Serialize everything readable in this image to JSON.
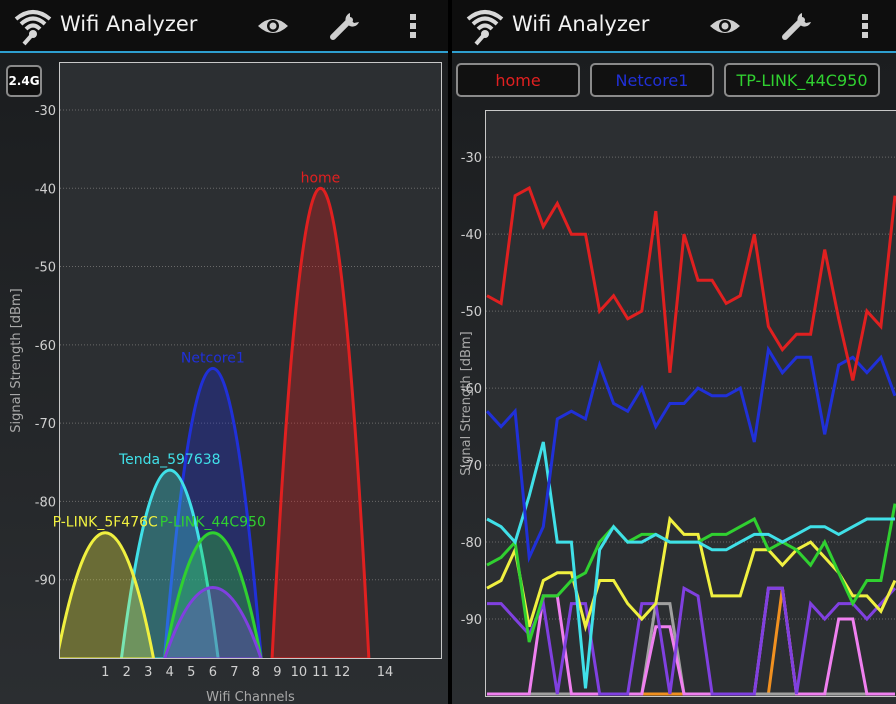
{
  "left": {
    "title": "Wifi Analyzer",
    "band_button": "2.4G",
    "y_axis_label": "Signal Strength [dBm]",
    "x_axis_label": "Wifi Channels",
    "y_ticks": [
      -30,
      -40,
      -50,
      -60,
      -70,
      -80,
      -90
    ],
    "x_ticks": [
      1,
      2,
      3,
      4,
      5,
      6,
      7,
      8,
      9,
      10,
      11,
      12,
      14
    ],
    "icons": [
      "wifi-logo-icon",
      "eye-icon",
      "wrench-icon",
      "overflow-menu-icon"
    ]
  },
  "right": {
    "title": "Wifi Analyzer",
    "y_axis_label": "Signal Strength [dBm]",
    "y_ticks": [
      -30,
      -40,
      -50,
      -60,
      -70,
      -80,
      -90
    ],
    "ap_buttons": [
      {
        "label": "home",
        "color": "#e02020"
      },
      {
        "label": "Netcore1",
        "color": "#2030d8"
      },
      {
        "label": "TP-LINK_44C950",
        "color": "#30d030"
      }
    ],
    "icons": [
      "wifi-logo-icon",
      "eye-icon",
      "wrench-icon",
      "overflow-menu-icon"
    ]
  },
  "chart_data": [
    {
      "type": "area",
      "x_axis": {
        "label": "Wifi Channels",
        "min": -1.1,
        "max": 16.6
      },
      "y_axis": {
        "label": "Signal Strength [dBm]",
        "min": -100,
        "max": -24
      },
      "grid": true,
      "series": [
        {
          "name": "home",
          "color": "#e02020",
          "center_channel": 11,
          "peak_dbm": -40,
          "label": "home"
        },
        {
          "name": "Netcore1",
          "color": "#2030d8",
          "center_channel": 6,
          "peak_dbm": -63,
          "label": "Netcore1"
        },
        {
          "name": "Tenda_597638",
          "color": "#40e0e8",
          "center_channel": 4,
          "peak_dbm": -76,
          "label": "Tenda_597638"
        },
        {
          "name": "TP-LINK_5F476C",
          "color": "#f0f040",
          "center_channel": 1,
          "peak_dbm": -84,
          "label": "P-LINK_5F476C"
        },
        {
          "name": "TP-LINK_44C950",
          "color": "#30d030",
          "center_channel": 6,
          "peak_dbm": -84,
          "label": "P-LINK_44C950"
        },
        {
          "name": "purple",
          "color": "#8040e0",
          "center_channel": 6,
          "peak_dbm": -91,
          "label": ""
        }
      ]
    },
    {
      "type": "line",
      "y_axis": {
        "label": "Signal Strength [dBm]",
        "min": -100,
        "max": -24
      },
      "grid": true,
      "series": [
        {
          "name": "home",
          "color": "#e02020",
          "values": [
            -48,
            -49,
            -35,
            -34,
            -39,
            -36,
            -40,
            -40,
            -50,
            -48,
            -51,
            -50,
            -37,
            -58,
            -40,
            -46,
            -46,
            -49,
            -48,
            -40,
            -52,
            -55,
            -53,
            -53,
            -42,
            -51,
            -59,
            -50,
            -52,
            -35
          ]
        },
        {
          "name": "Netcore1",
          "color": "#2030d8",
          "values": [
            -63,
            -65,
            -63,
            -82,
            -78,
            -64,
            -63,
            -64,
            -57,
            -62,
            -63,
            -60,
            -65,
            -62,
            -62,
            -60,
            -61,
            -61,
            -60,
            -67,
            -55,
            -58,
            -56,
            -56,
            -66,
            -57,
            -56,
            -58,
            -56,
            -61
          ]
        },
        {
          "name": "Tenda_597638",
          "color": "#40e0e8",
          "values": [
            -77,
            -78,
            -80,
            -74,
            -67,
            -80,
            -80,
            -99,
            -81,
            -78,
            -80,
            -80,
            -79,
            -80,
            -80,
            -80,
            -81,
            -81,
            -80,
            -79,
            -79,
            -80,
            -79,
            -78,
            -78,
            -79,
            -78,
            -77,
            -77,
            -77
          ]
        },
        {
          "name": "TP-LINK_44C950",
          "color": "#30d030",
          "values": [
            -83,
            -82,
            -80,
            -93,
            -87,
            -87,
            -85,
            -84,
            -80,
            -78,
            -80,
            -79,
            -79,
            -80,
            -80,
            -80,
            -79,
            -79,
            -78,
            -77,
            -81,
            -80,
            -81,
            -83,
            -80,
            -84,
            -88,
            -85,
            -85,
            -75
          ]
        },
        {
          "name": "yellow",
          "color": "#f0f040",
          "values": [
            -86,
            -85,
            -81,
            -91,
            -85,
            -84,
            -84,
            -91,
            -85,
            -85,
            -88,
            -90,
            -88,
            -77,
            -79,
            -79,
            -87,
            -87,
            -87,
            -81,
            -81,
            -83,
            -81,
            -80,
            -82,
            -84,
            -87,
            -87,
            -89,
            -85
          ]
        },
        {
          "name": "purple",
          "color": "#8040e0",
          "values": [
            -88,
            -88,
            -90,
            -92,
            -88,
            -100,
            -88,
            -88,
            -100,
            -100,
            -100,
            -88,
            -88,
            -100,
            -86,
            -87,
            -100,
            -100,
            -100,
            -100,
            -86,
            -86,
            -100,
            -88,
            -90,
            -88,
            -88,
            -90,
            -88,
            -86
          ]
        },
        {
          "name": "pink",
          "color": "#f080f0",
          "values": [
            -100,
            -100,
            -100,
            -100,
            -87,
            -87,
            -100,
            -100,
            -100,
            -100,
            -100,
            -100,
            -91,
            -91,
            -100,
            -100,
            -100,
            -100,
            -100,
            -100,
            -86,
            -86,
            -100,
            -100,
            -100,
            -90,
            -90,
            -100,
            -100,
            -100
          ]
        },
        {
          "name": "gray",
          "color": "#a0a0a0",
          "values": [
            -100,
            -100,
            -100,
            -100,
            -100,
            -100,
            -100,
            -100,
            -100,
            -100,
            -100,
            -100,
            -88,
            -88,
            -100,
            -100,
            -100,
            -100,
            -100,
            -100,
            -100,
            -100,
            -100,
            -100,
            -100,
            -100,
            -100,
            -100,
            -100,
            -100
          ]
        },
        {
          "name": "orange",
          "color": "#f09020",
          "values": [
            -100,
            -100,
            -100,
            -100,
            -100,
            -100,
            -100,
            -100,
            -100,
            -100,
            -100,
            -100,
            -100,
            -100,
            -100,
            -100,
            -100,
            -100,
            -100,
            -100,
            -100,
            -86,
            -100,
            -100,
            -100,
            -100,
            -100,
            -100,
            -100,
            -100
          ]
        }
      ]
    }
  ]
}
